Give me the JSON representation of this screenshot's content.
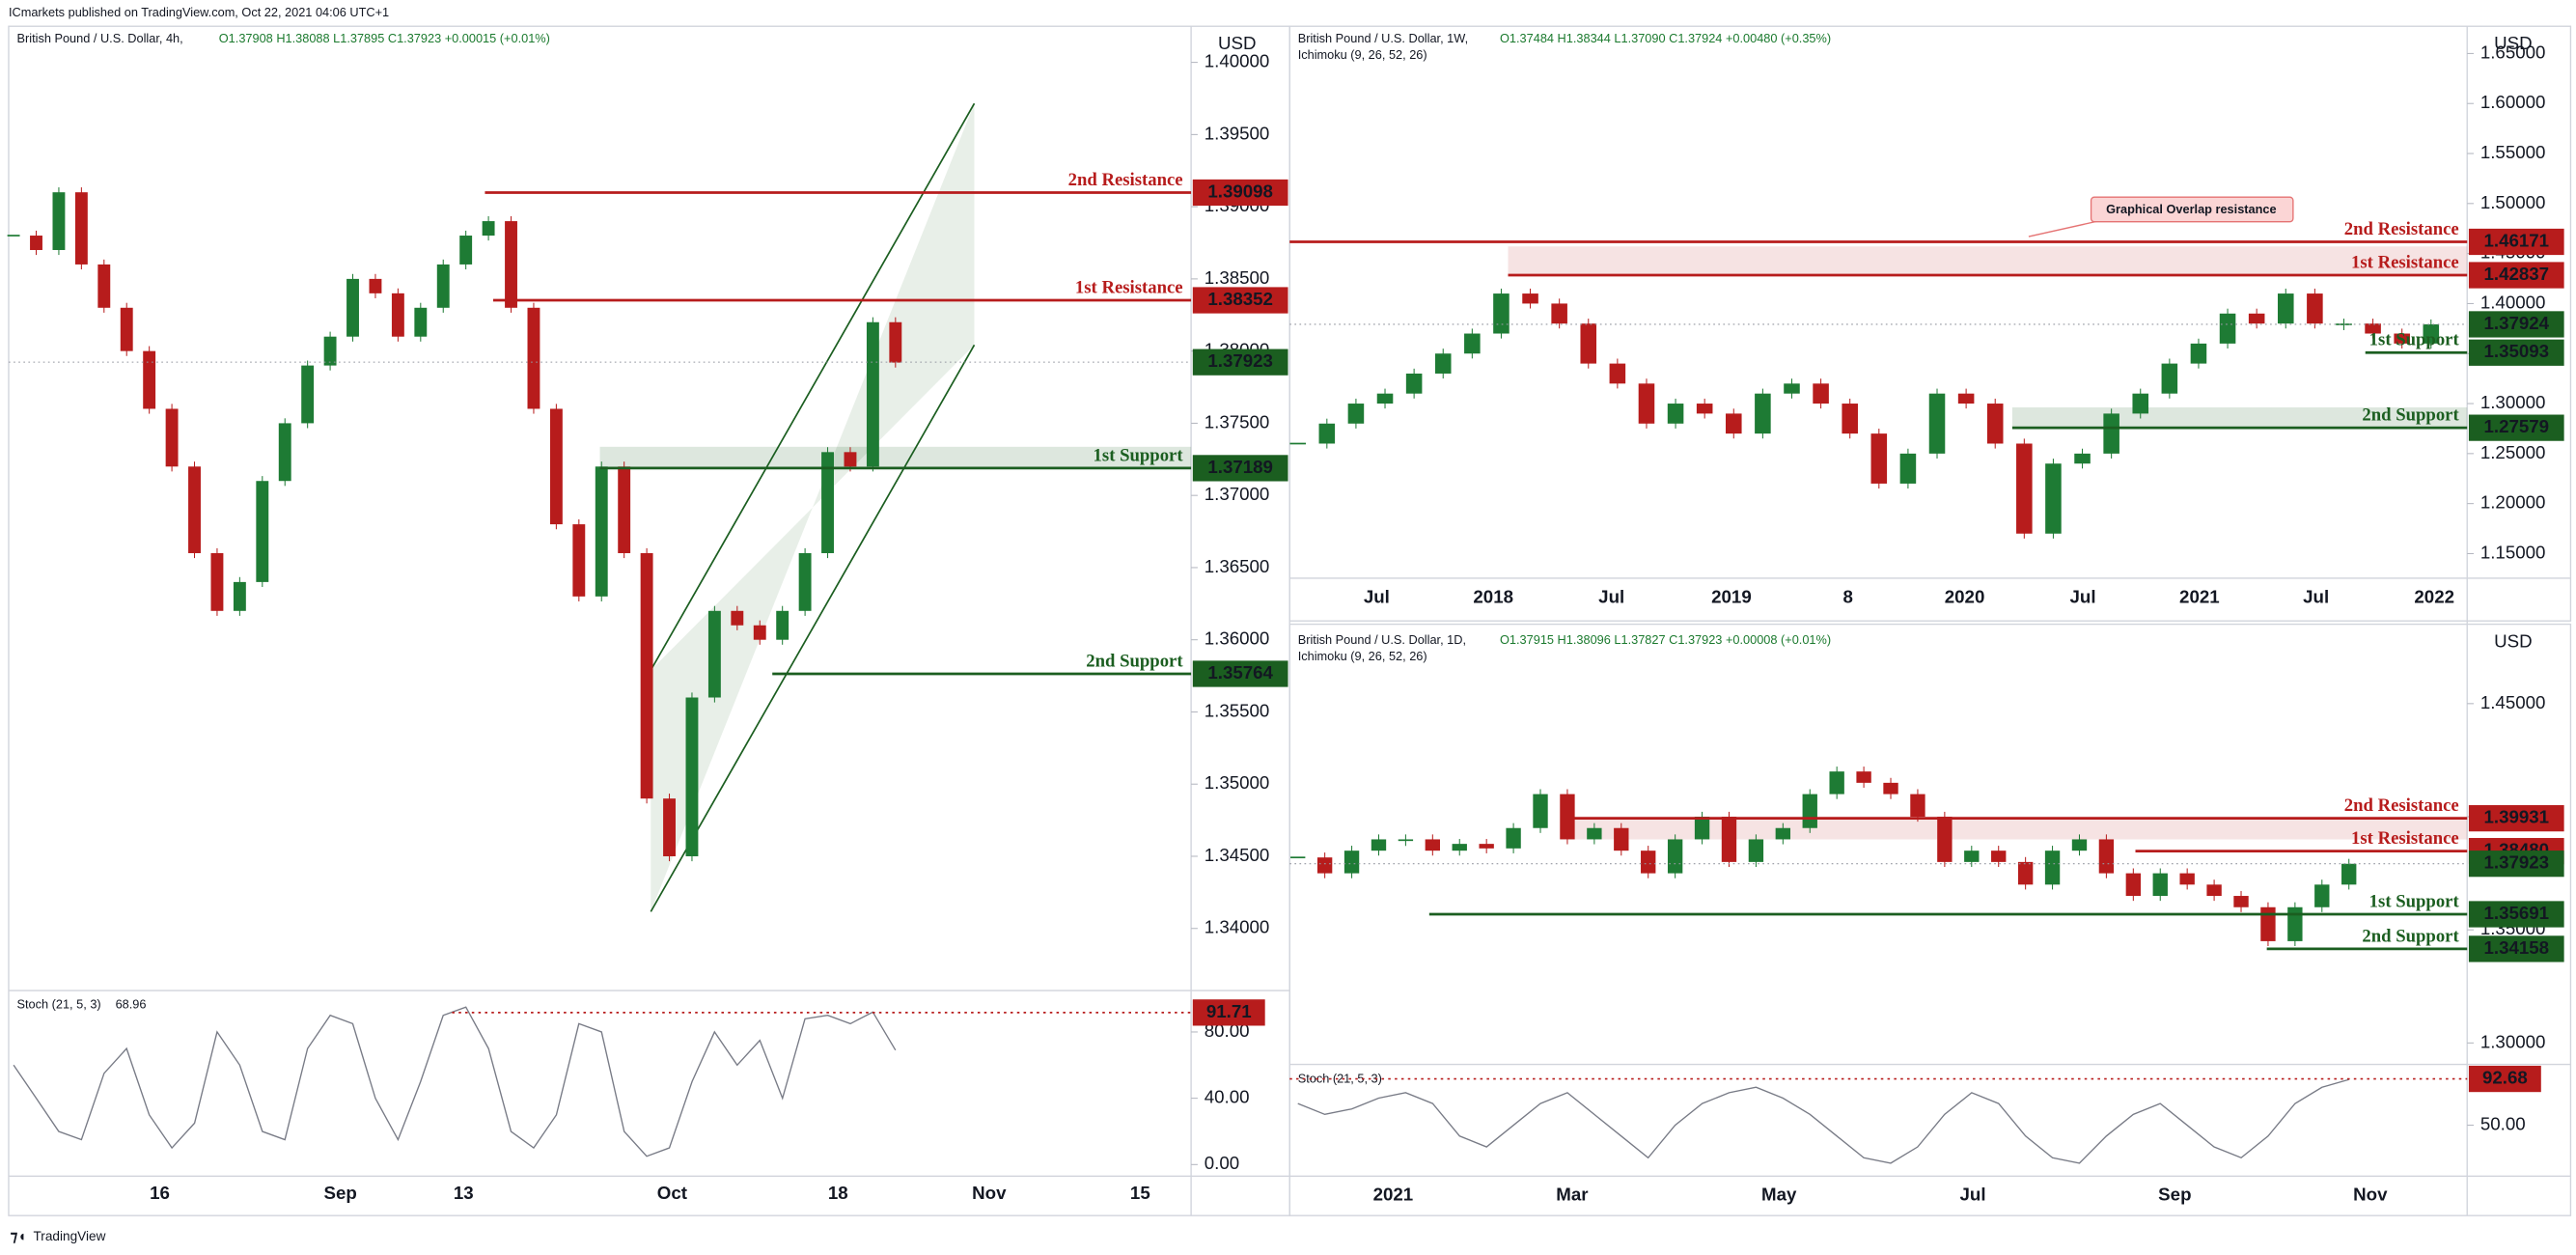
{
  "header": {
    "publisher": "ICmarkets published on TradingView.com, Oct 22, 2021 04:06 UTC+1"
  },
  "footer": {
    "brand": "TradingView"
  },
  "annotation": "Graphical Overlap resistance",
  "chart_data": [
    {
      "type": "candlestick",
      "title": "British Pound / U.S. Dollar, 4h,",
      "ohlc": "O1.37908 H1.38088 L1.37895 C1.37923 +0.00015 (+0.01%)",
      "currency": "USD",
      "up_color": "#1e7b34",
      "down_color": "#b71c1c",
      "resistance_color": "#b71c1c",
      "support_color": "#1b5e20",
      "ylim": [
        1.3357,
        1.4025
      ],
      "yticks": [
        {
          "value": 1.34,
          "label": "1.34000"
        },
        {
          "value": 1.345,
          "label": "1.34500"
        },
        {
          "value": 1.35,
          "label": "1.35000"
        },
        {
          "value": 1.355,
          "label": "1.35500"
        },
        {
          "value": 1.36,
          "label": "1.36000"
        },
        {
          "value": 1.365,
          "label": "1.36500"
        },
        {
          "value": 1.37,
          "label": "1.37000"
        },
        {
          "value": 1.375,
          "label": "1.37500"
        },
        {
          "value": 1.38,
          "label": "1.38000"
        },
        {
          "value": 1.385,
          "label": "1.38500"
        },
        {
          "value": 1.39,
          "label": "1.39000"
        },
        {
          "value": 1.395,
          "label": "1.39500"
        },
        {
          "value": 1.4,
          "label": "1.40000"
        }
      ],
      "xticks": [
        "16",
        "Sep",
        "13",
        "Oct",
        "18",
        "Nov",
        "15"
      ],
      "closes": [
        1.388,
        1.387,
        1.391,
        1.386,
        1.383,
        1.38,
        1.376,
        1.372,
        1.366,
        1.362,
        1.364,
        1.371,
        1.375,
        1.379,
        1.381,
        1.385,
        1.384,
        1.381,
        1.383,
        1.386,
        1.388,
        1.389,
        1.383,
        1.376,
        1.368,
        1.363,
        1.372,
        1.366,
        1.349,
        1.345,
        1.356,
        1.362,
        1.361,
        1.36,
        1.362,
        1.366,
        1.373,
        1.372,
        1.382,
        1.3792
      ],
      "levels": [
        {
          "name": "2nd Resistance",
          "value": 1.39098,
          "kind": "resistance"
        },
        {
          "name": "1st Resistance",
          "value": 1.38352,
          "kind": "resistance"
        },
        {
          "name": "1st Support",
          "value": 1.37189,
          "kind": "support"
        },
        {
          "name": "2nd Support",
          "value": 1.35764,
          "kind": "support"
        }
      ],
      "last": 1.37923,
      "stoch": {
        "title": "Stoch (21, 5, 3)",
        "value_text": "68.96",
        "ylim": [
          -7,
          105
        ],
        "yticks": [
          {
            "value": 0,
            "label": "0.00"
          },
          {
            "value": 40,
            "label": "40.00"
          },
          {
            "value": 80,
            "label": "80.00"
          }
        ],
        "level": 91.71,
        "values": [
          60,
          40,
          20,
          15,
          55,
          70,
          30,
          10,
          25,
          80,
          60,
          20,
          15,
          70,
          90,
          85,
          40,
          15,
          50,
          90,
          95,
          70,
          20,
          10,
          30,
          85,
          80,
          20,
          5,
          10,
          50,
          80,
          60,
          75,
          40,
          88,
          90,
          85,
          92,
          69
        ]
      }
    },
    {
      "type": "candlestick",
      "title": "British Pound / U.S. Dollar, 1W,",
      "ohlc": "O1.37484 H1.38344 L1.37090 C1.37924 +0.00480 (+0.35%)",
      "indicator": "Ichimoku (9, 26, 52, 26)",
      "currency": "USD",
      "up_color": "#1e7b34",
      "down_color": "#b71c1c",
      "resistance_color": "#b71c1c",
      "support_color": "#1b5e20",
      "ylim": [
        1.1254,
        1.6772
      ],
      "yticks": [
        {
          "value": 1.15,
          "label": "1.15000"
        },
        {
          "value": 1.2,
          "label": "1.20000"
        },
        {
          "value": 1.25,
          "label": "1.25000"
        },
        {
          "value": 1.3,
          "label": "1.30000"
        },
        {
          "value": 1.35,
          "label": "1.35000"
        },
        {
          "value": 1.4,
          "label": "1.40000"
        },
        {
          "value": 1.45,
          "label": "1.45000"
        },
        {
          "value": 1.5,
          "label": "1.50000"
        },
        {
          "value": 1.55,
          "label": "1.55000"
        },
        {
          "value": 1.6,
          "label": "1.60000"
        },
        {
          "value": 1.65,
          "label": "1.65000"
        }
      ],
      "xticks": [
        "Jul",
        "2018",
        "Jul",
        "2019",
        "8",
        "2020",
        "Jul",
        "2021",
        "Jul",
        "2022"
      ],
      "closes": [
        1.26,
        1.28,
        1.3,
        1.31,
        1.33,
        1.35,
        1.37,
        1.41,
        1.4,
        1.38,
        1.34,
        1.32,
        1.28,
        1.3,
        1.29,
        1.27,
        1.31,
        1.32,
        1.3,
        1.27,
        1.22,
        1.25,
        1.31,
        1.3,
        1.26,
        1.17,
        1.24,
        1.25,
        1.29,
        1.31,
        1.34,
        1.36,
        1.39,
        1.38,
        1.41,
        1.38,
        1.38,
        1.37,
        1.36,
        1.3792
      ],
      "levels": [
        {
          "name": "2nd Resistance",
          "value": 1.46171,
          "kind": "resistance"
        },
        {
          "name": "1st Resistance",
          "value": 1.42837,
          "kind": "resistance"
        },
        {
          "name": "1st Support",
          "value": 1.35093,
          "kind": "support"
        },
        {
          "name": "2nd Support",
          "value": 1.27579,
          "kind": "support"
        }
      ],
      "last": 1.37924
    },
    {
      "type": "candlestick",
      "title": "British Pound / U.S. Dollar, 1D,",
      "ohlc": "O1.37915 H1.38096 L1.37827 C1.37923 +0.00008 (+0.01%)",
      "indicator": "Ichimoku (9, 26, 52, 26)",
      "currency": "USD",
      "up_color": "#1e7b34",
      "down_color": "#b71c1c",
      "resistance_color": "#b71c1c",
      "support_color": "#1b5e20",
      "ylim": [
        1.2905,
        1.4851
      ],
      "yticks": [
        {
          "value": 1.3,
          "label": "1.30000"
        },
        {
          "value": 1.35,
          "label": "1.35000"
        },
        {
          "value": 1.4,
          "label": "1.40000"
        },
        {
          "value": 1.45,
          "label": "1.45000"
        }
      ],
      "xticks": [
        "2021",
        "Mar",
        "May",
        "Jul",
        "Sep",
        "Nov"
      ],
      "closes": [
        1.382,
        1.375,
        1.385,
        1.39,
        1.39,
        1.385,
        1.388,
        1.386,
        1.395,
        1.41,
        1.39,
        1.395,
        1.385,
        1.375,
        1.39,
        1.4,
        1.38,
        1.39,
        1.395,
        1.41,
        1.42,
        1.415,
        1.41,
        1.4,
        1.38,
        1.385,
        1.38,
        1.37,
        1.385,
        1.39,
        1.375,
        1.365,
        1.375,
        1.37,
        1.365,
        1.36,
        1.345,
        1.36,
        1.37,
        1.3792
      ],
      "levels": [
        {
          "name": "2nd Resistance",
          "value": 1.39931,
          "kind": "resistance"
        },
        {
          "name": "1st Resistance",
          "value": 1.3848,
          "label": "1.38480",
          "kind": "resistance"
        },
        {
          "name": "1st Support",
          "value": 1.35691,
          "kind": "support"
        },
        {
          "name": "2nd Support",
          "value": 1.34158,
          "kind": "support"
        }
      ],
      "last": 1.37923,
      "stoch": {
        "title": "Stoch (21, 5, 3)",
        "ylim": [
          3,
          106
        ],
        "yticks": [
          {
            "value": 50,
            "label": "50.00"
          }
        ],
        "level": 92.68,
        "values": [
          70,
          60,
          65,
          75,
          80,
          70,
          40,
          30,
          50,
          70,
          80,
          60,
          40,
          20,
          50,
          70,
          80,
          85,
          75,
          60,
          40,
          20,
          15,
          30,
          60,
          80,
          70,
          40,
          20,
          15,
          40,
          60,
          70,
          50,
          30,
          20,
          40,
          70,
          85,
          92
        ]
      }
    }
  ]
}
